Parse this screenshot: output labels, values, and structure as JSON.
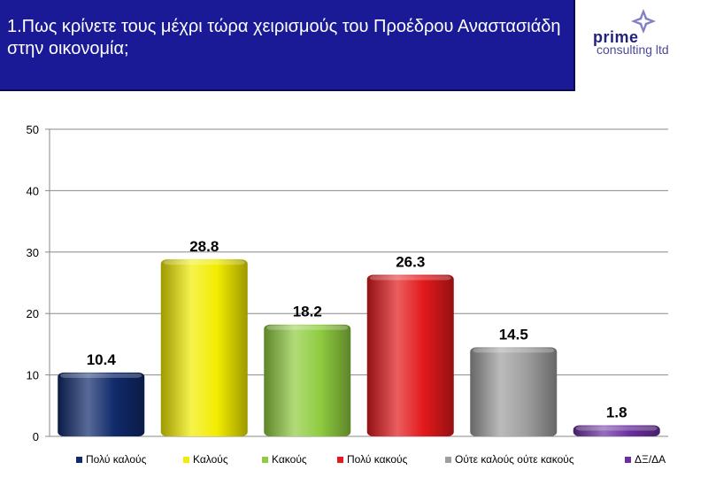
{
  "header": {
    "title": "1.Πως κρίνετε τους μέχρι τώρα χειρισμούς του Προέδρου Αναστασιάδη στην οικονομία;",
    "logo_word1": "prime",
    "logo_word2": "consulting ltd"
  },
  "chart_data": {
    "type": "bar",
    "title": "1.Πως κρίνετε τους μέχρι τώρα χειρισμούς του Προέδρου Αναστασιάδη στην οικονομία;",
    "categories": [
      "Πολύ καλούς",
      "Καλούς",
      "Κακούς",
      "Πολύ κακούς",
      "Ούτε καλούς ούτε κακούς",
      "ΔΞ/ΔΑ"
    ],
    "values": [
      10.4,
      28.8,
      18.2,
      26.3,
      14.5,
      1.8
    ],
    "colors": [
      "#102a6b",
      "#f2ec00",
      "#8fcc3f",
      "#e3191b",
      "#9e9e9e",
      "#6b2fa0"
    ],
    "ylim": [
      0,
      50
    ],
    "yticks": [
      "0",
      "10",
      "20",
      "30",
      "40",
      "50"
    ],
    "grid": true,
    "legend": "bottom",
    "xlabel": "",
    "ylabel": ""
  }
}
